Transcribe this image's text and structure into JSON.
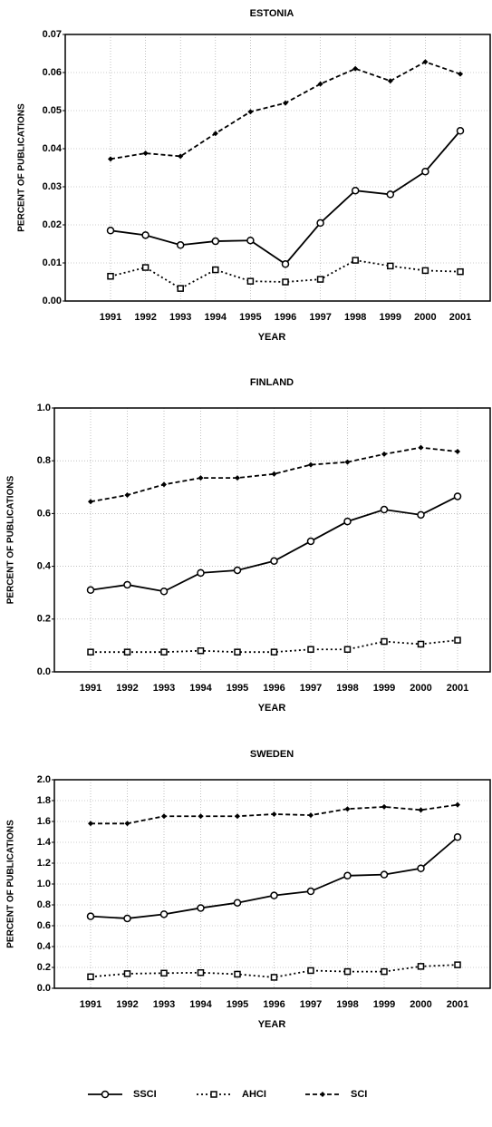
{
  "chart_data": [
    {
      "type": "line",
      "title": "ESTONIA",
      "xlabel": "YEAR",
      "ylabel": "PERCENT OF PUBLICATIONS",
      "categories": [
        "1991",
        "1992",
        "1993",
        "1994",
        "1995",
        "1996",
        "1997",
        "1998",
        "1999",
        "2000",
        "2001"
      ],
      "series": [
        {
          "color": "#000000",
          "values": [
            0.0185,
            0.0173,
            0.0147,
            0.0157,
            0.0159,
            0.0097,
            0.0205,
            0.029,
            0.028,
            0.034,
            0.0447
          ]
        },
        {
          "color": "#000000",
          "values": [
            0.0065,
            0.0088,
            0.0033,
            0.0082,
            0.0052,
            0.005,
            0.0057,
            0.0107,
            0.0092,
            0.008,
            0.0077
          ]
        },
        {
          "color": "#000000",
          "values": [
            0.0373,
            0.0388,
            0.038,
            0.044,
            0.0497,
            0.052,
            0.057,
            0.061,
            0.0578,
            0.0628,
            0.0596
          ]
        }
      ],
      "ylim": [
        0,
        0.07
      ],
      "yticks": [
        {
          "value": 0,
          "label": "0.00"
        },
        0.01,
        0.02,
        0.03,
        0.04,
        0.05,
        0.06,
        0.07
      ],
      "grid": true
    },
    {
      "type": "line",
      "title": "FINLAND",
      "xlabel": "YEAR",
      "ylabel": "PERCENT OF PUBLICATIONS",
      "categories": [
        "1991",
        "1992",
        "1993",
        "1994",
        "1995",
        "1996",
        "1997",
        "1998",
        "1999",
        "2000",
        "2001"
      ],
      "series": [
        {
          "color": "#000000",
          "values": [
            0.31,
            0.33,
            0.305,
            0.375,
            0.385,
            0.42,
            0.495,
            0.57,
            0.615,
            0.595,
            0.665
          ]
        },
        {
          "color": "#000000",
          "values": [
            0.075,
            0.075,
            0.075,
            0.08,
            0.075,
            0.075,
            0.085,
            0.085,
            0.115,
            0.105,
            0.12
          ]
        },
        {
          "color": "#000000",
          "values": [
            0.645,
            0.67,
            0.71,
            0.735,
            0.735,
            0.75,
            0.785,
            0.795,
            0.825,
            0.85,
            0.835
          ]
        }
      ],
      "ylim": [
        0,
        1
      ],
      "yticks": [
        {
          "value": 0,
          "label": "0.0"
        },
        0.2,
        0.4,
        0.6,
        0.8,
        {
          "value": 1,
          "label": "1.0"
        }
      ],
      "grid": true
    },
    {
      "type": "line",
      "title": "SWEDEN",
      "xlabel": "YEAR",
      "ylabel": "PERCENT OF PUBLICATIONS",
      "categories": [
        "1991",
        "1992",
        "1993",
        "1994",
        "1995",
        "1996",
        "1997",
        "1998",
        "1999",
        "2000",
        "2001"
      ],
      "series": [
        {
          "name": "SSCI",
          "color": "#000000",
          "values": [
            0.69,
            0.67,
            0.71,
            0.77,
            0.82,
            0.89,
            0.93,
            1.08,
            1.09,
            1.15,
            1.45
          ]
        },
        {
          "name": "AHCI",
          "color": "#000000",
          "values": [
            0.11,
            0.14,
            0.145,
            0.15,
            0.135,
            0.105,
            0.17,
            0.16,
            0.16,
            0.21,
            0.225
          ]
        },
        {
          "name": "SCI",
          "color": "#000000",
          "values": [
            1.58,
            1.58,
            1.65,
            1.65,
            1.65,
            1.67,
            1.66,
            1.72,
            1.74,
            1.71,
            1.76
          ]
        }
      ],
      "ylim": [
        0,
        2
      ],
      "yticks": [
        {
          "value": 0,
          "label": "0.0"
        },
        0.2,
        0.4,
        0.6,
        0.8,
        {
          "value": 1,
          "label": "1.0"
        },
        1.2,
        1.4,
        1.6,
        1.8,
        {
          "value": 2,
          "label": "2.0"
        }
      ],
      "grid": true
    }
  ]
}
